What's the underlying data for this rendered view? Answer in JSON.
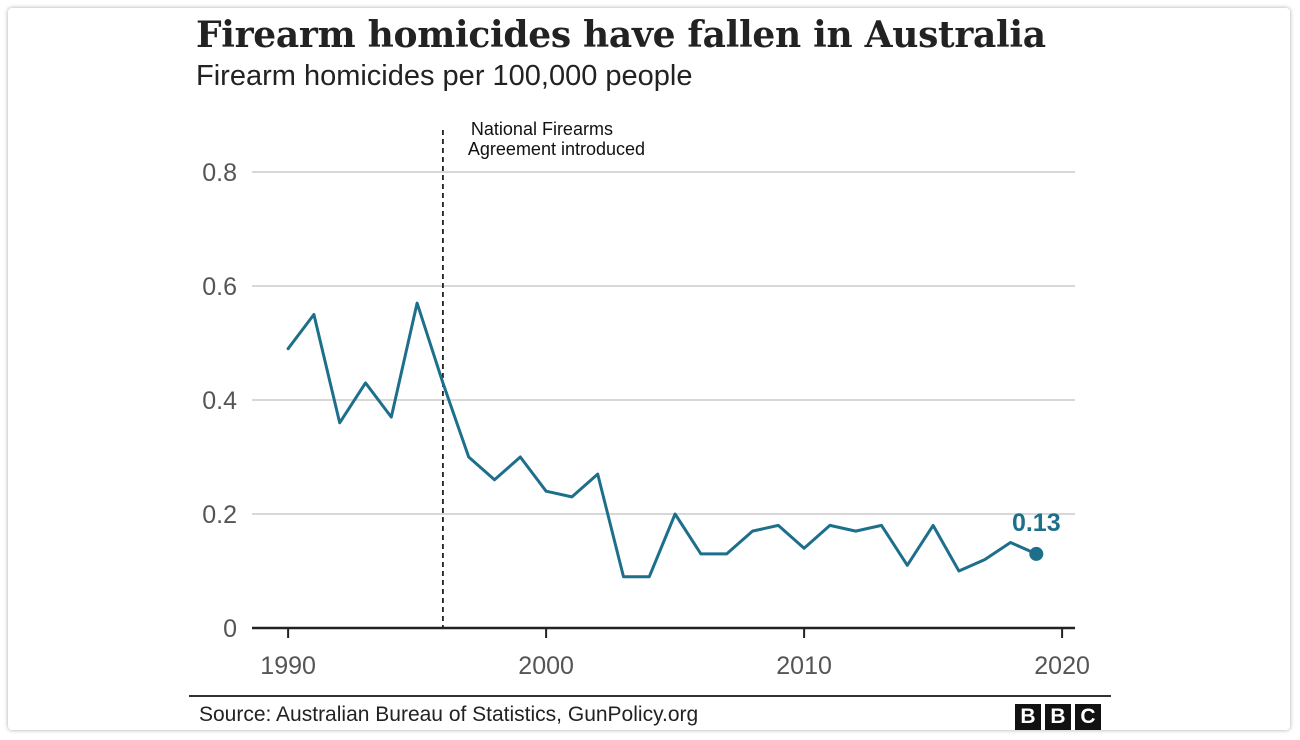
{
  "header": {
    "title": "Firearm homicides have fallen in Australia",
    "subtitle": "Firearm homicides per 100,000 people"
  },
  "footer": {
    "source": "Source: Australian Bureau of Statistics, GunPolicy.org",
    "logo": [
      "B",
      "B",
      "C"
    ]
  },
  "chart_data": {
    "type": "line",
    "title": "Firearm homicides have fallen in Australia",
    "subtitle": "Firearm homicides per 100,000 people",
    "x": [
      1990,
      1991,
      1992,
      1993,
      1994,
      1995,
      1996,
      1997,
      1998,
      1999,
      2000,
      2001,
      2002,
      2003,
      2004,
      2005,
      2006,
      2007,
      2008,
      2009,
      2010,
      2011,
      2012,
      2013,
      2014,
      2015,
      2016,
      2017,
      2018,
      2019
    ],
    "series": [
      {
        "values": [
          0.49,
          0.55,
          0.36,
          0.43,
          0.37,
          0.57,
          0.43,
          0.3,
          0.26,
          0.3,
          0.24,
          0.23,
          0.27,
          0.09,
          0.09,
          0.2,
          0.13,
          0.13,
          0.17,
          0.18,
          0.14,
          0.18,
          0.17,
          0.18,
          0.11,
          0.18,
          0.1,
          0.12,
          0.15,
          0.13
        ],
        "color": "#1d6f8c"
      }
    ],
    "xlim": [
      1988.6,
      2020.5
    ],
    "ylim": [
      0,
      0.8
    ],
    "x_ticks": [
      1990,
      2000,
      2010,
      2020
    ],
    "y_ticks": [
      0,
      0.2,
      0.4,
      0.6,
      0.8
    ],
    "y_tick_labels": [
      "0",
      "0.2",
      "0.4",
      "0.6",
      "0.8"
    ],
    "x_tick_labels": [
      "1990",
      "2000",
      "2010",
      "2020"
    ],
    "annotation": {
      "x": 1996,
      "lines": [
        "National Firearms",
        "Agreement introduced"
      ]
    },
    "end_label": {
      "x": 2019,
      "value": 0.13,
      "text": "0.13"
    },
    "grid": true,
    "legend": "none",
    "gridline_color": "#cccccc",
    "axis_color": "#222222"
  }
}
